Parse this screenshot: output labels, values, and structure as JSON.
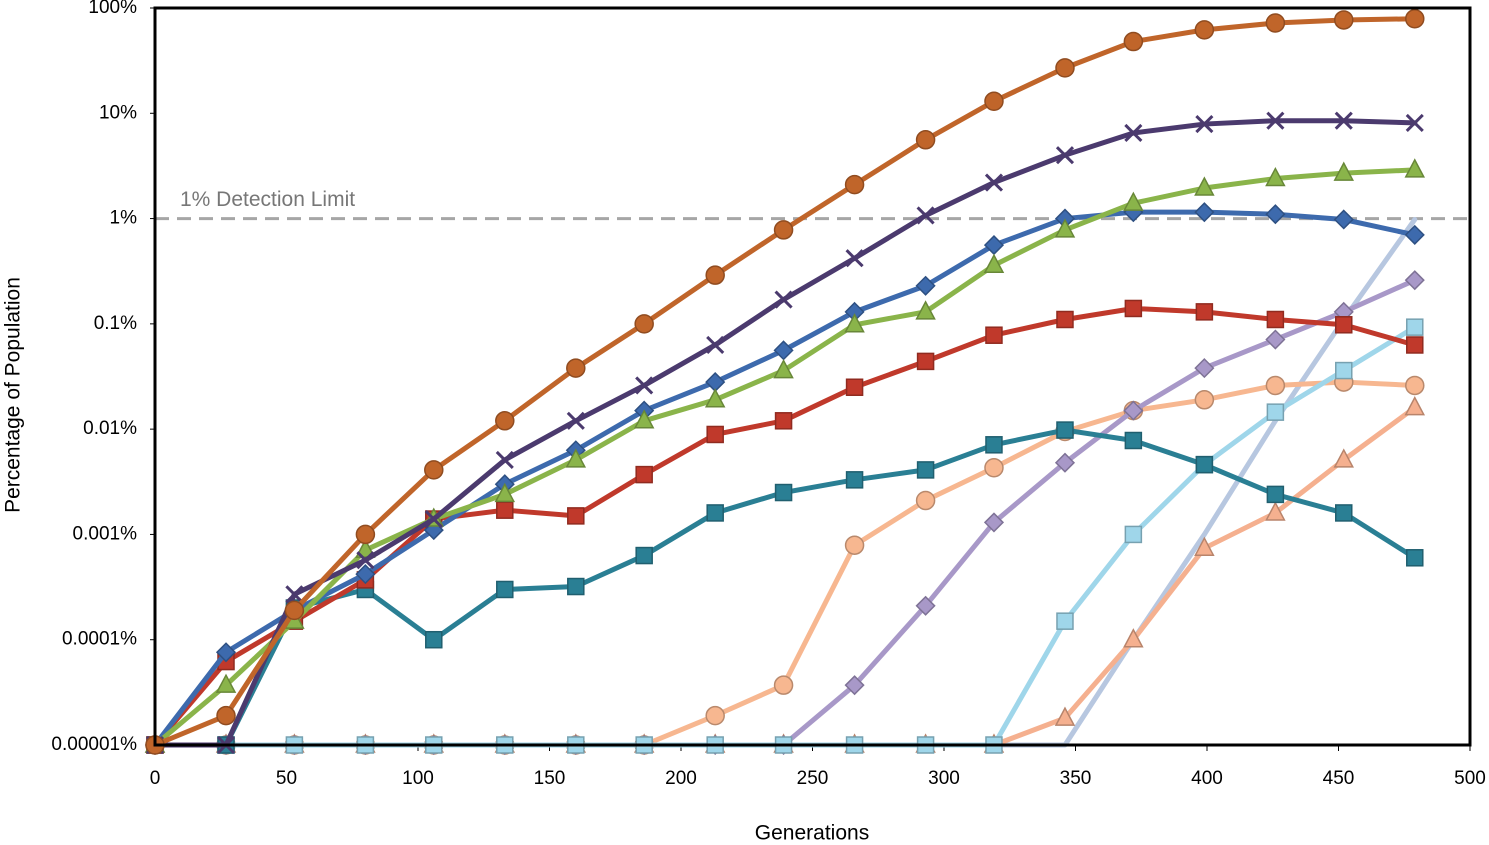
{
  "chart_data": {
    "type": "line",
    "x_label": "Generations",
    "y_label": "Percentage of Population",
    "log_y": true,
    "xlim": [
      0,
      500
    ],
    "xticks": [
      0,
      50,
      100,
      150,
      200,
      250,
      300,
      350,
      400,
      450,
      500
    ],
    "ylim": [
      1e-05,
      100
    ],
    "yticks": [
      {
        "value": 1e-05,
        "label": "0.00001%"
      },
      {
        "value": 0.0001,
        "label": "0.0001%"
      },
      {
        "value": 0.001,
        "label": "0.001%"
      },
      {
        "value": 0.01,
        "label": "0.01%"
      },
      {
        "value": 0.1,
        "label": "0.1%"
      },
      {
        "value": 1,
        "label": "1%"
      },
      {
        "value": 10,
        "label": "10%"
      },
      {
        "value": 100,
        "label": "100%"
      }
    ],
    "reference_line": {
      "value": 1,
      "label": "1% Detection Limit",
      "color": "#a6a6a6"
    },
    "x": [
      0,
      27,
      53,
      80,
      106,
      133,
      160,
      186,
      213,
      239,
      266,
      293,
      319,
      346,
      372,
      399,
      426,
      452,
      479
    ],
    "series": [
      {
        "color": "#b7c7e0",
        "marker": "none",
        "values": [
          1e-05,
          1e-05,
          1e-05,
          1e-05,
          1e-05,
          1e-05,
          1e-05,
          1e-05,
          1e-05,
          1e-05,
          1e-05,
          1e-05,
          1e-05,
          1e-05,
          0.0001,
          0.001,
          0.012,
          0.11,
          0.98
        ]
      },
      {
        "color": "#f7b790",
        "marker": "circle",
        "values": [
          1e-05,
          1e-05,
          1e-05,
          1e-05,
          1e-05,
          1e-05,
          1e-05,
          1e-05,
          1.9e-05,
          3.7e-05,
          0.00079,
          0.0021,
          0.0043,
          0.0095,
          0.015,
          0.019,
          0.026,
          0.028,
          0.026
        ]
      },
      {
        "color": "#f5b08f",
        "marker": "triangle",
        "values": [
          1e-05,
          1e-05,
          1e-05,
          1e-05,
          1e-05,
          1e-05,
          1e-05,
          1e-05,
          1e-05,
          1e-05,
          1e-05,
          1e-05,
          1e-05,
          1.8e-05,
          0.0001,
          0.00074,
          0.0016,
          0.0051,
          0.016
        ]
      },
      {
        "color": "#a898c8",
        "marker": "diamond",
        "values": [
          1e-05,
          1e-05,
          1e-05,
          1e-05,
          1e-05,
          1e-05,
          1e-05,
          1e-05,
          1e-05,
          1e-05,
          3.7e-05,
          0.00021,
          0.0013,
          0.0048,
          0.015,
          0.038,
          0.071,
          0.13,
          0.26
        ]
      },
      {
        "color": "#9fd6ea",
        "marker": "square",
        "values": [
          1e-05,
          1e-05,
          1e-05,
          1e-05,
          1e-05,
          1e-05,
          1e-05,
          1e-05,
          1e-05,
          1e-05,
          1e-05,
          1e-05,
          1e-05,
          0.00015,
          0.001,
          0.0046,
          0.0145,
          0.036,
          0.093
        ]
      },
      {
        "color": "#2a7f94",
        "marker": "square",
        "values": [
          1e-05,
          1e-05,
          0.0002,
          0.0003,
          0.0001,
          0.0003,
          0.00032,
          0.00063,
          0.0016,
          0.0025,
          0.0033,
          0.0041,
          0.0071,
          0.0098,
          0.0078,
          0.0046,
          0.0024,
          0.0016,
          0.0006
        ]
      },
      {
        "color": "#c0392b",
        "marker": "square",
        "values": [
          1e-05,
          6.2e-05,
          0.00015,
          0.00037,
          0.0014,
          0.0017,
          0.0015,
          0.0037,
          0.0089,
          0.012,
          0.025,
          0.044,
          0.078,
          0.11,
          0.14,
          0.13,
          0.11,
          0.098,
          0.063
        ]
      },
      {
        "color": "#3d6aad",
        "marker": "diamond",
        "values": [
          1e-05,
          7.6e-05,
          0.00019,
          0.00042,
          0.0011,
          0.003,
          0.0063,
          0.015,
          0.028,
          0.056,
          0.13,
          0.23,
          0.56,
          1.0,
          1.15,
          1.15,
          1.1,
          0.98,
          0.7
        ]
      },
      {
        "color": "#8ab44a",
        "marker": "triangle",
        "values": [
          1e-05,
          3.7e-05,
          0.00015,
          0.00071,
          0.0014,
          0.0024,
          0.0051,
          0.012,
          0.019,
          0.036,
          0.098,
          0.13,
          0.36,
          0.78,
          1.4,
          1.95,
          2.4,
          2.7,
          2.9
        ]
      },
      {
        "color": "#4b3a6e",
        "marker": "x",
        "values": [
          1e-05,
          1e-05,
          0.00027,
          0.00057,
          0.0014,
          0.0051,
          0.012,
          0.026,
          0.063,
          0.17,
          0.42,
          1.07,
          2.2,
          4.0,
          6.5,
          7.9,
          8.5,
          8.5,
          8.1
        ]
      },
      {
        "color": "#c0652a",
        "marker": "circle",
        "values": [
          1e-05,
          1.9e-05,
          0.00019,
          0.001,
          0.0041,
          0.012,
          0.038,
          0.1,
          0.29,
          0.78,
          2.1,
          5.6,
          13,
          27,
          48,
          62,
          72,
          77,
          79
        ]
      }
    ]
  }
}
